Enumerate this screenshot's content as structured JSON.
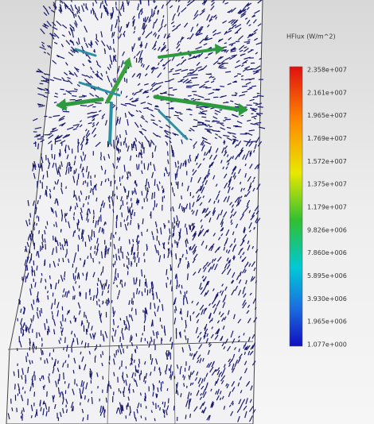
{
  "legend": {
    "title": "HFlux (W/m^2)",
    "labels": [
      "2.358e+007",
      "2.161e+007",
      "1.965e+007",
      "1.769e+007",
      "1.572e+007",
      "1.375e+007",
      "1.179e+007",
      "9.826e+006",
      "7.860e+006",
      "5.895e+006",
      "3.930e+006",
      "1.965e+006",
      "1.077e+000"
    ]
  }
}
